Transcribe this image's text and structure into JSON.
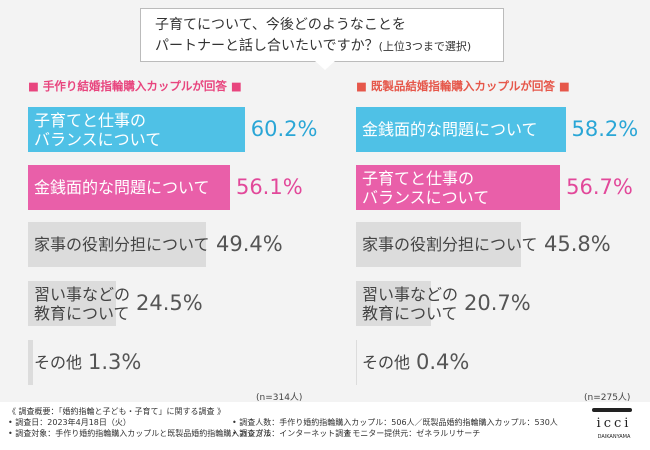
{
  "title_lines": [
    "子育てについて、今後どのようなことを",
    "パートナーと話し合いたいですか？"
  ],
  "title_note": "(上位3つまで選択)",
  "chart_data": [
    {
      "type": "bar",
      "orientation": "horizontal",
      "title": "■ 手作り結婚指輪購入カップルが回答 ■",
      "title_color": "#e8457e",
      "categories": [
        "子育てと仕事の\nバランスについて",
        "金銭面的な問題について",
        "家事の役割分担について",
        "習い事などの\n教育について",
        "その他"
      ],
      "values": [
        60.2,
        56.1,
        49.4,
        24.5,
        1.3
      ],
      "value_labels": [
        "60.2%",
        "56.1%",
        "49.4%",
        "24.5%",
        "1.3%"
      ],
      "colors": [
        "#4fc1e6",
        "#e95fa9",
        "#dcdcdc",
        "#dcdcdc",
        "#dcdcdc"
      ],
      "label_colors": [
        "#2aa6d6",
        "#e2489a",
        "#555555",
        "#555555",
        "#555555"
      ],
      "note": "(n=314人)"
    },
    {
      "type": "bar",
      "orientation": "horizontal",
      "title": "■ 既製品結婚指輪購入カップルが回答 ■",
      "title_color": "#e6574a",
      "categories": [
        "金銭面的な問題について",
        "子育てと仕事の\nバランスについて",
        "家事の役割分担について",
        "習い事などの\n教育について",
        "その他"
      ],
      "values": [
        58.2,
        56.7,
        45.8,
        20.7,
        0.4
      ],
      "value_labels": [
        "58.2%",
        "56.7%",
        "45.8%",
        "20.7%",
        "0.4%"
      ],
      "colors": [
        "#4fc1e6",
        "#e95fa9",
        "#dcdcdc",
        "#dcdcdc",
        "#dcdcdc"
      ],
      "label_colors": [
        "#2aa6d6",
        "#e2489a",
        "#555555",
        "#555555",
        "#555555"
      ],
      "note": "(n=275人)"
    }
  ],
  "footer": [
    "《 調査概要：「婚約指輪と子ども・子育て」に関する調査 》",
    "• 調査日：2023年4月18日（火）",
    "• 調査人数：手作り婚約指輪購入カップル：506人／既製品婚約指輪購入カップル：530人",
    "• 調査対象：手作り婚約指輪購入カップルと既製品婚約指輪購入カップル",
    "• 調査方法：インターネット調査",
    "• モニター提供元：ゼネラルリサーチ"
  ],
  "logo": "icci",
  "logo_sub": "DAIKANYAMA"
}
